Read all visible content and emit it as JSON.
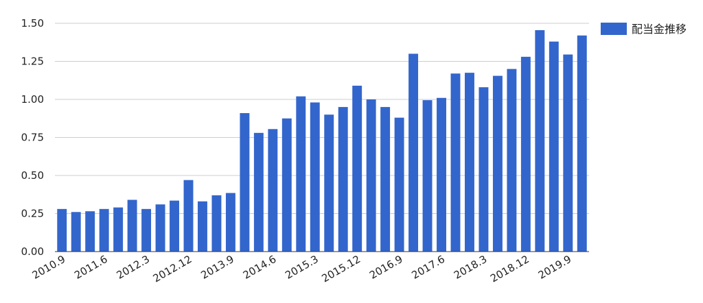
{
  "chart_data": {
    "type": "bar",
    "title": "",
    "xlabel": "",
    "ylabel": "",
    "ylim": [
      0,
      1.5
    ],
    "y_ticks": [
      "0.00",
      "0.25",
      "0.50",
      "0.75",
      "1.00",
      "1.25",
      "1.50"
    ],
    "y_tick_values": [
      0,
      0.25,
      0.5,
      0.75,
      1.0,
      1.25,
      1.5
    ],
    "grid": true,
    "legend": "top-right",
    "bar_color": "#3366cc",
    "series": [
      {
        "name": "配当金推移",
        "values": [
          0.28,
          0.26,
          0.265,
          0.28,
          0.29,
          0.34,
          0.28,
          0.31,
          0.335,
          0.47,
          0.33,
          0.37,
          0.385,
          0.91,
          0.78,
          0.805,
          0.875,
          1.02,
          0.98,
          0.9,
          0.95,
          1.09,
          1.0,
          0.95,
          0.88,
          1.3,
          0.995,
          1.01,
          1.17,
          1.175,
          1.08,
          1.155,
          1.2,
          1.28,
          1.455,
          1.38,
          1.295,
          1.42
        ]
      }
    ],
    "x_tick_labels": [
      "2010.9",
      "2011.6",
      "2012.3",
      "2012.12",
      "2013.9",
      "2014.6",
      "2015.3",
      "2015.12",
      "2016.9",
      "2017.6",
      "2018.3",
      "2018.12",
      "2019.9"
    ]
  }
}
